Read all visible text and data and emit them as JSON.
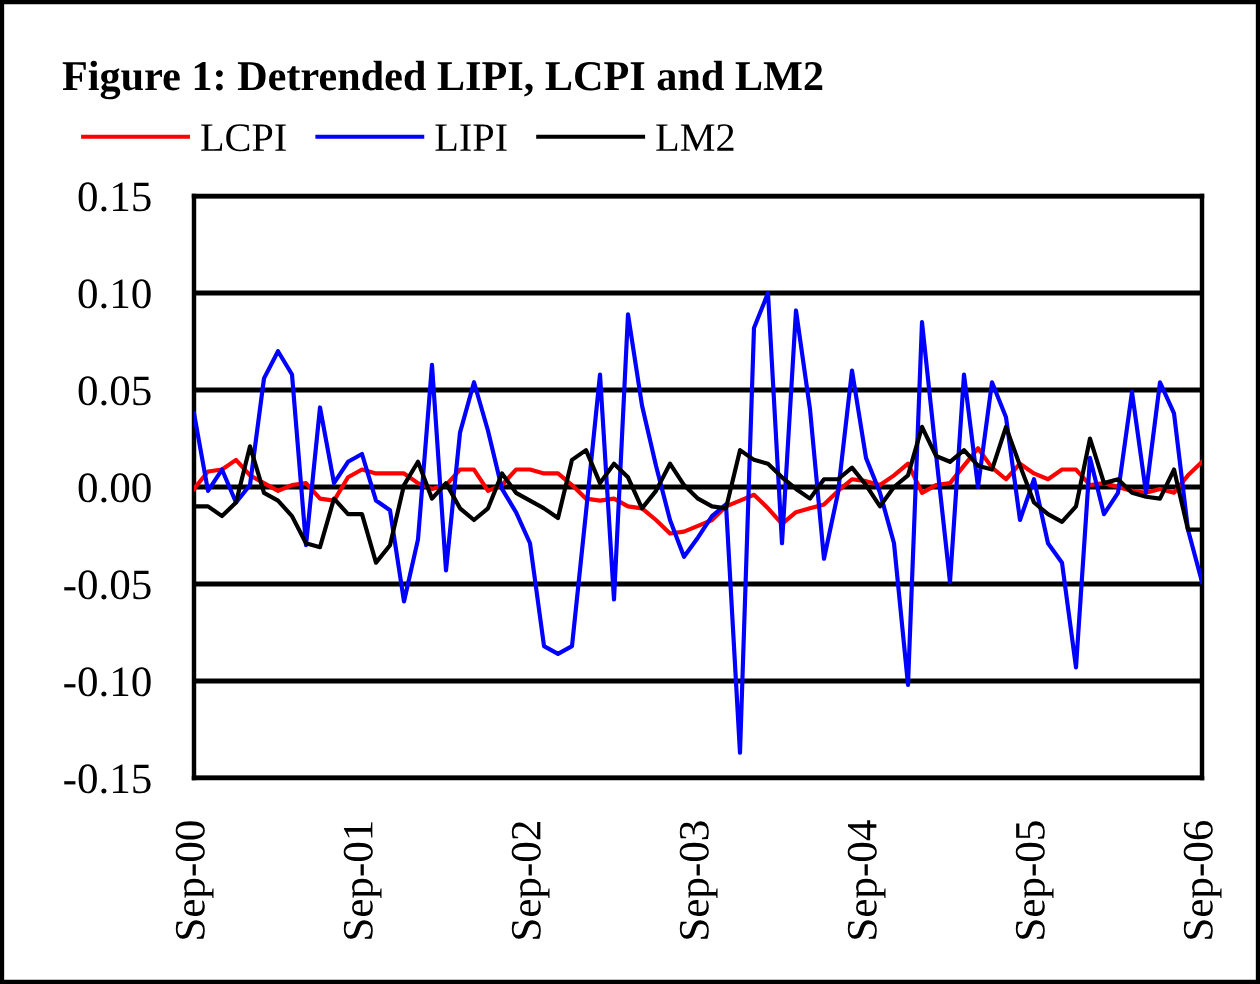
{
  "chart_data": {
    "type": "line",
    "title": "Figure 1: Detrended LIPI, LCPI and LM2",
    "categories": [
      "Sep-00",
      null,
      null,
      null,
      null,
      null,
      null,
      null,
      null,
      null,
      null,
      null,
      "Sep-01",
      null,
      null,
      null,
      null,
      null,
      null,
      null,
      null,
      null,
      null,
      null,
      "Sep-02",
      null,
      null,
      null,
      null,
      null,
      null,
      null,
      null,
      null,
      null,
      null,
      "Sep-03",
      null,
      null,
      null,
      null,
      null,
      null,
      null,
      null,
      null,
      null,
      null,
      "Sep-04",
      null,
      null,
      null,
      null,
      null,
      null,
      null,
      null,
      null,
      null,
      null,
      "Sep-05",
      null,
      null,
      null,
      null,
      null,
      null,
      null,
      null,
      null,
      null,
      null,
      "Sep-06"
    ],
    "series": [
      {
        "name": "LCPI",
        "color": "#ff0000",
        "values": [
          -0.001,
          0.008,
          0.009,
          0.014,
          0.006,
          0.002,
          -0.002,
          0.001,
          0.002,
          -0.006,
          -0.007,
          0.005,
          0.009,
          0.007,
          0.007,
          0.007,
          0.002,
          -0.001,
          0.001,
          0.009,
          0.009,
          -0.002,
          0.001,
          0.009,
          0.009,
          0.007,
          0.007,
          0.001,
          -0.006,
          -0.007,
          -0.006,
          -0.01,
          -0.011,
          -0.017,
          -0.024,
          -0.023,
          -0.02,
          -0.017,
          -0.01,
          -0.007,
          -0.004,
          -0.011,
          -0.019,
          -0.013,
          -0.011,
          -0.009,
          -0.002,
          0.004,
          0.003,
          0.001,
          0.006,
          0.012,
          -0.003,
          0.001,
          0.002,
          0.011,
          0.02,
          0.01,
          0.004,
          0.012,
          0.007,
          0.004,
          0.009,
          0.009,
          0.001,
          0.002,
          0.0,
          -0.002,
          -0.003,
          -0.001,
          -0.003,
          0.006,
          0.013
        ]
      },
      {
        "name": "LIPI",
        "color": "#0000ff",
        "values": [
          0.038,
          -0.002,
          0.009,
          -0.008,
          0.001,
          0.056,
          0.07,
          0.058,
          -0.03,
          0.041,
          0.002,
          0.013,
          0.017,
          -0.007,
          -0.012,
          -0.059,
          -0.027,
          0.063,
          -0.043,
          0.028,
          0.054,
          0.029,
          -0.001,
          -0.013,
          -0.029,
          -0.082,
          -0.086,
          -0.082,
          -0.013,
          0.058,
          -0.058,
          0.089,
          0.042,
          0.011,
          -0.017,
          -0.036,
          -0.026,
          -0.015,
          -0.009,
          -0.137,
          0.082,
          0.1,
          -0.029,
          0.091,
          0.04,
          -0.037,
          -0.003,
          0.06,
          0.015,
          -0.003,
          -0.029,
          -0.102,
          0.085,
          0.017,
          -0.049,
          0.058,
          0.0,
          0.054,
          0.036,
          -0.017,
          0.004,
          -0.029,
          -0.039,
          -0.093,
          0.015,
          -0.014,
          -0.003,
          0.049,
          -0.003,
          0.054,
          0.038,
          -0.022,
          -0.049
        ]
      },
      {
        "name": "LM2",
        "color": "#000000",
        "values": [
          -0.01,
          -0.01,
          -0.015,
          -0.008,
          0.021,
          -0.003,
          -0.007,
          -0.015,
          -0.029,
          -0.031,
          -0.006,
          -0.014,
          -0.014,
          -0.039,
          -0.03,
          0.001,
          0.013,
          -0.006,
          0.002,
          -0.011,
          -0.017,
          -0.011,
          0.007,
          -0.003,
          -0.007,
          -0.011,
          -0.016,
          0.014,
          0.019,
          0.002,
          0.012,
          0.005,
          -0.011,
          -0.002,
          0.012,
          0.001,
          -0.006,
          -0.01,
          -0.011,
          0.019,
          0.014,
          0.012,
          0.005,
          -0.001,
          -0.006,
          0.004,
          0.004,
          0.01,
          0.001,
          -0.01,
          0.0,
          0.006,
          0.031,
          0.016,
          0.013,
          0.019,
          0.011,
          0.009,
          0.031,
          0.011,
          -0.008,
          -0.014,
          -0.018,
          -0.01,
          0.025,
          0.002,
          0.004,
          -0.003,
          -0.005,
          -0.006,
          0.009,
          -0.022,
          -0.022
        ]
      }
    ],
    "ylim": [
      -0.15,
      0.15
    ],
    "yticks": [
      {
        "value": -0.15,
        "label": "-0.15"
      },
      {
        "value": -0.1,
        "label": "-0.10"
      },
      {
        "value": -0.05,
        "label": "-0.05"
      },
      {
        "value": 0,
        "label": "0.00"
      },
      {
        "value": 0.05,
        "label": "0.05"
      },
      {
        "value": 0.1,
        "label": "0.10"
      },
      {
        "value": 0.15,
        "label": "0.15"
      }
    ],
    "grid": "y",
    "legend": "top",
    "marker": "none",
    "line_style": "solid"
  }
}
